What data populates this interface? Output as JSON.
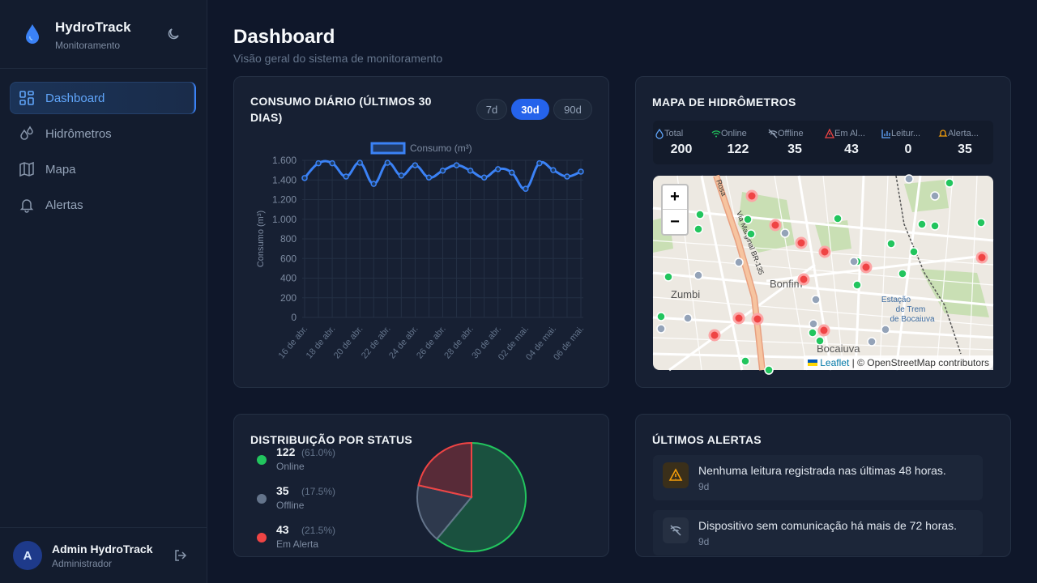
{
  "sidebar": {
    "brand": "HydroTrack",
    "subtitle": "Monitoramento",
    "nav": [
      "Dashboard",
      "Hidrômetros",
      "Mapa",
      "Alertas"
    ],
    "user": {
      "initial": "A",
      "name": "Admin HydroTrack",
      "role": "Administrador"
    }
  },
  "header": {
    "title": "Dashboard",
    "subtitle": "Visão geral do sistema de monitoramento"
  },
  "consumption": {
    "title": "CONSUMO DIÁRIO (ÚLTIMOS 30 DIAS)",
    "ranges": [
      "7d",
      "30d",
      "90d"
    ],
    "chart_data": {
      "type": "line",
      "y_label": "Consumo (m³)",
      "categories": [
        "16 de abr.",
        null,
        "18 de abr.",
        null,
        "20 de abr.",
        null,
        "22 de abr.",
        null,
        "24 de abr.",
        null,
        "26 de abr.",
        null,
        "28 de abr.",
        null,
        "30 de abr.",
        null,
        "02 de mai.",
        null,
        "04 de mai.",
        null,
        "06 de mai."
      ],
      "series": [
        {
          "name": "Consumo (m³)",
          "color": "#3b82f6",
          "values": [
            1420,
            1570,
            1570,
            1435,
            1575,
            1360,
            1575,
            1445,
            1550,
            1425,
            1495,
            1550,
            1495,
            1425,
            1510,
            1475,
            1310,
            1570,
            1500,
            1435,
            1485
          ]
        }
      ],
      "ylim": [
        0,
        1600
      ],
      "yticks": [
        0,
        200,
        400,
        600,
        800,
        {
          "value": 1000,
          "label": "1.000"
        },
        {
          "value": 1200,
          "label": "1.200"
        },
        {
          "value": 1400,
          "label": "1.400"
        },
        {
          "value": 1600,
          "label": "1.600"
        }
      ],
      "grid": true,
      "legend": "top"
    }
  },
  "map": {
    "title": "MAPA DE HIDRÔMETROS",
    "stats": [
      {
        "label": "Total",
        "value": 200
      },
      {
        "label": "Online",
        "value": 122
      },
      {
        "label": "Offline",
        "value": 35
      },
      {
        "label": "Em Al...",
        "value": 43
      },
      {
        "label": "Leitur...",
        "value": 0
      },
      {
        "label": "Alerta...",
        "value": 35
      }
    ],
    "places": [
      "Zumbi",
      "Bonfim",
      "Bocaiuva",
      "Estação",
      "de Trem",
      "de Bocaiuva",
      "Via Marginal BR-135",
      "Rosa"
    ],
    "zoom_in": "+",
    "zoom_out": "−",
    "attribution": {
      "link": "Leaflet",
      "text": "| © OpenStreetMap contributors"
    }
  },
  "status": {
    "title": "DISTRIBUIÇÃO POR STATUS",
    "chart_data": {
      "type": "pie",
      "categories": [
        "Online",
        "Offline",
        "Em Alerta"
      ],
      "values": [
        122,
        35,
        43
      ],
      "percent_labels": [
        "(61.0%)",
        "(17.5%)",
        "(21.5%)"
      ],
      "colors": [
        "#22c55e",
        "#64748b",
        "#ef4444"
      ]
    }
  },
  "alerts": {
    "title": "ÚLTIMOS ALERTAS",
    "items": [
      {
        "message": "Nenhuma leitura registrada nas últimas 48 horas.",
        "age": "9d"
      },
      {
        "message": "Dispositivo sem comunicação há mais de 72 horas.",
        "age": "9d"
      }
    ]
  }
}
